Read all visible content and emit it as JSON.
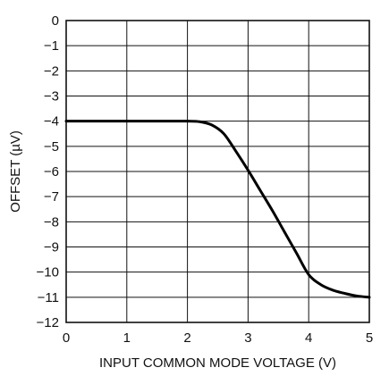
{
  "chart_data": {
    "type": "line",
    "title": "",
    "xlabel": "INPUT COMMON MODE VOLTAGE (V)",
    "ylabel": "OFFSET (µV)",
    "xlim": [
      0,
      5
    ],
    "ylim": [
      -12,
      0
    ],
    "grid": true,
    "x_ticks": [
      0,
      1,
      2,
      3,
      4,
      5
    ],
    "y_ticks": [
      0,
      -1,
      -2,
      -3,
      -4,
      -5,
      -6,
      -7,
      -8,
      -9,
      -10,
      -11,
      -12
    ],
    "x_tick_labels": [
      "0",
      "1",
      "2",
      "3",
      "4",
      "5"
    ],
    "y_tick_labels": [
      "0",
      "−1",
      "−2",
      "−3",
      "−4",
      "−5",
      "−6",
      "−7",
      "−8",
      "−9",
      "−10",
      "−11",
      "−12"
    ],
    "series": [
      {
        "color": "#000000",
        "x": [
          0,
          0.5,
          1.0,
          1.5,
          2.0,
          2.2,
          2.4,
          2.6,
          2.8,
          3.0,
          3.2,
          3.4,
          3.6,
          3.8,
          4.0,
          4.2,
          4.4,
          4.6,
          4.8,
          5.0
        ],
        "y": [
          -4.0,
          -4.0,
          -4.0,
          -4.0,
          -4.0,
          -4.02,
          -4.15,
          -4.5,
          -5.2,
          -5.95,
          -6.75,
          -7.55,
          -8.4,
          -9.25,
          -10.1,
          -10.5,
          -10.72,
          -10.85,
          -10.95,
          -11.0
        ]
      }
    ]
  }
}
